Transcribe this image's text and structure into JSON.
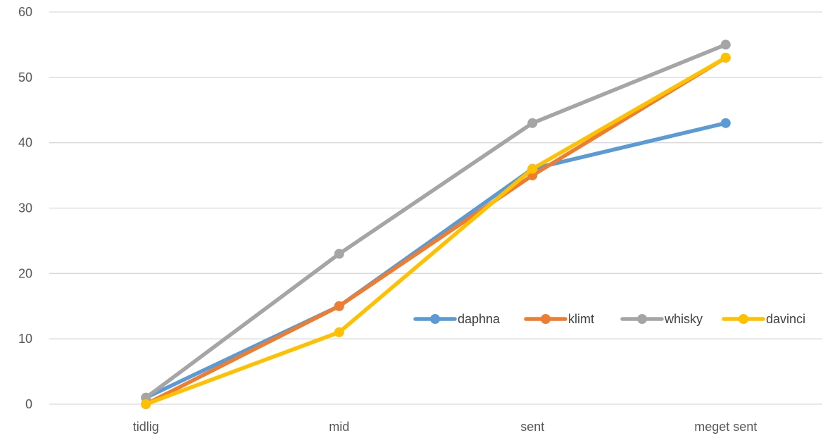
{
  "chart_data": {
    "type": "line",
    "categories": [
      "tidlig",
      "mid",
      "sent",
      "meget sent"
    ],
    "ylim": [
      0,
      60
    ],
    "yticks": [
      0,
      10,
      20,
      30,
      40,
      50,
      60
    ],
    "grid": true,
    "legend_position": "inside-right",
    "series": [
      {
        "name": "daphna",
        "color": "#5B9BD5",
        "values": [
          1,
          15,
          36,
          43
        ]
      },
      {
        "name": "klimt",
        "color": "#ED7D31",
        "values": [
          0,
          15,
          35,
          53
        ]
      },
      {
        "name": "whisky",
        "color": "#A5A5A5",
        "values": [
          1,
          23,
          43,
          55
        ]
      },
      {
        "name": "davinci",
        "color": "#FFC000",
        "values": [
          0,
          11,
          36,
          53
        ]
      }
    ]
  }
}
